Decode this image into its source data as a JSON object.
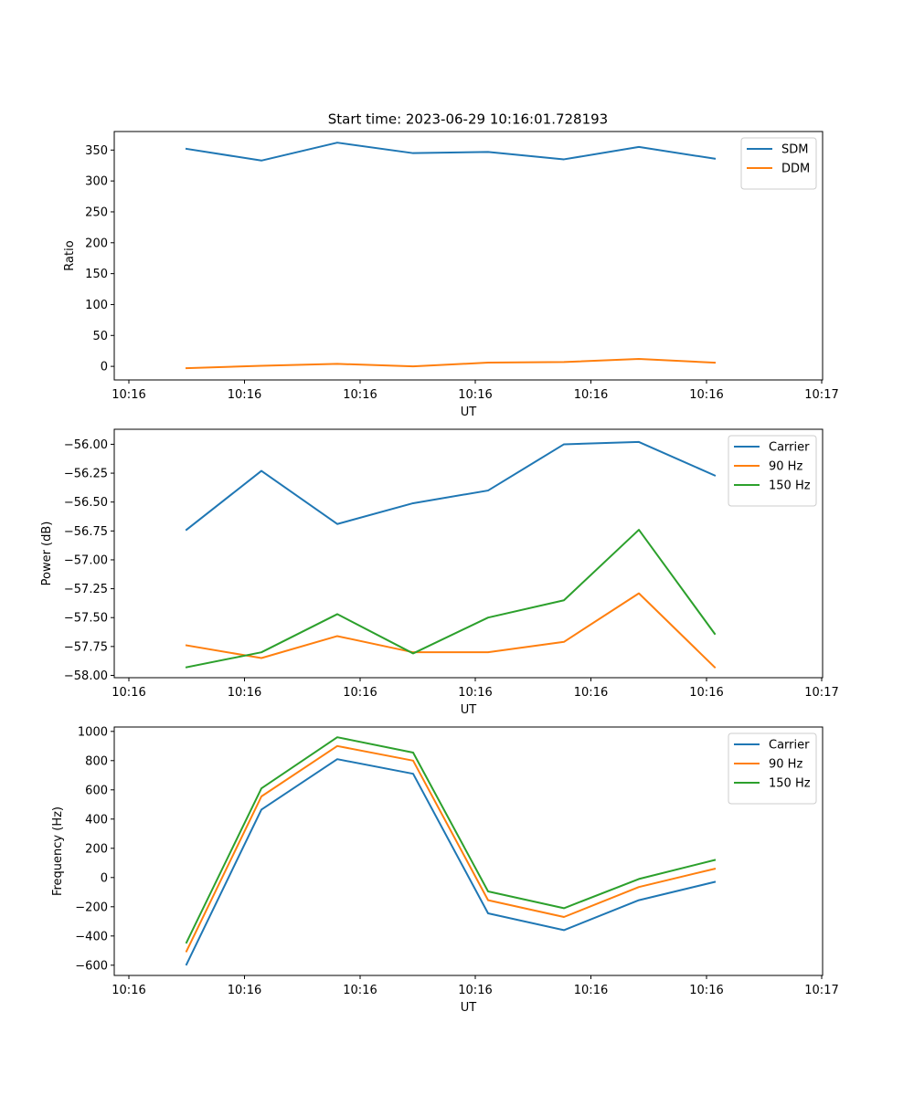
{
  "title": "Start time: 2023-06-29 10:16:01.728193",
  "chart_data": [
    {
      "type": "line",
      "xlabel": "UT",
      "ylabel": "Ratio",
      "x_tick_labels": [
        "10:16",
        "10:16",
        "10:16",
        "10:16",
        "10:16",
        "10:16",
        "10:16",
        "10:17"
      ],
      "ylim": [
        -22,
        380
      ],
      "y_ticks": [
        0,
        50,
        100,
        150,
        200,
        250,
        300,
        350
      ],
      "y_tick_labels": [
        "0",
        "50",
        "100",
        "150",
        "200",
        "250",
        "300",
        "350"
      ],
      "legend_position": "top-right",
      "series": [
        {
          "name": "SDM",
          "color": "#1f77b4",
          "values": [
            352,
            333,
            362,
            345,
            347,
            335,
            355,
            336
          ]
        },
        {
          "name": "DDM",
          "color": "#ff7f0e",
          "values": [
            -3,
            1,
            4,
            0,
            6,
            7,
            12,
            6
          ]
        }
      ]
    },
    {
      "type": "line",
      "xlabel": "UT",
      "ylabel": "Power (dB)",
      "x_tick_labels": [
        "10:16",
        "10:16",
        "10:16",
        "10:16",
        "10:16",
        "10:16",
        "10:16",
        "10:17"
      ],
      "ylim": [
        -58.02,
        -55.87
      ],
      "y_ticks": [
        -58.0,
        -57.75,
        -57.5,
        -57.25,
        -57.0,
        -56.75,
        -56.5,
        -56.25,
        -56.0
      ],
      "y_tick_labels": [
        "−58.00",
        "−57.75",
        "−57.50",
        "−57.25",
        "−57.00",
        "−56.75",
        "−56.50",
        "−56.25",
        "−56.00"
      ],
      "legend_position": "top-right",
      "series": [
        {
          "name": "Carrier",
          "color": "#1f77b4",
          "values": [
            -56.74,
            -56.23,
            -56.69,
            -56.51,
            -56.4,
            -56.0,
            -55.98,
            -56.27
          ]
        },
        {
          "name": "90 Hz",
          "color": "#ff7f0e",
          "values": [
            -57.74,
            -57.85,
            -57.66,
            -57.8,
            -57.8,
            -57.71,
            -57.29,
            -57.93
          ]
        },
        {
          "name": "150 Hz",
          "color": "#2ca02c",
          "values": [
            -57.93,
            -57.8,
            -57.47,
            -57.81,
            -57.5,
            -57.35,
            -56.74,
            -57.64
          ]
        }
      ]
    },
    {
      "type": "line",
      "xlabel": "UT",
      "ylabel": "Frequency (Hz)",
      "x_tick_labels": [
        "10:16",
        "10:16",
        "10:16",
        "10:16",
        "10:16",
        "10:16",
        "10:16",
        "10:17"
      ],
      "ylim": [
        -670,
        1030
      ],
      "y_ticks": [
        -600,
        -400,
        -200,
        0,
        200,
        400,
        600,
        800,
        1000
      ],
      "y_tick_labels": [
        "−600",
        "−400",
        "−200",
        "0",
        "200",
        "400",
        "600",
        "800",
        "1000"
      ],
      "legend_position": "top-right",
      "series": [
        {
          "name": "Carrier",
          "color": "#1f77b4",
          "values": [
            -595,
            465,
            810,
            710,
            -245,
            -360,
            -155,
            -30
          ]
        },
        {
          "name": "90 Hz",
          "color": "#ff7f0e",
          "values": [
            -505,
            555,
            900,
            800,
            -155,
            -270,
            -65,
            60
          ]
        },
        {
          "name": "150 Hz",
          "color": "#2ca02c",
          "values": [
            -445,
            610,
            960,
            855,
            -95,
            -210,
            -10,
            120
          ]
        }
      ]
    }
  ]
}
